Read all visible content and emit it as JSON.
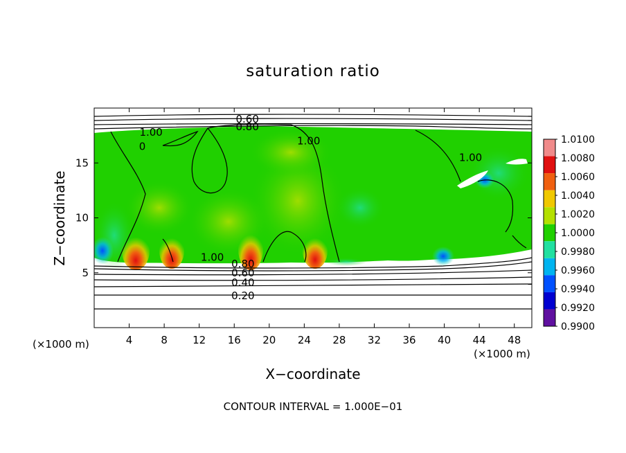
{
  "chart_data": {
    "type": "heatmap",
    "title": "saturation ratio",
    "xlabel": "X−coordinate",
    "ylabel": "Z−coordinate",
    "x_unit_label_left": "(×1000 m)",
    "x_unit_label_right": "(×1000 m)",
    "xlim": [
      0,
      50
    ],
    "ylim": [
      0,
      20
    ],
    "x_ticks": [
      4,
      8,
      12,
      16,
      20,
      24,
      28,
      32,
      36,
      40,
      44,
      48
    ],
    "y_ticks": [
      5,
      10,
      15
    ],
    "colorbar": {
      "levels": [
        1.01,
        1.008,
        1.006,
        1.004,
        1.002,
        1.0,
        0.998,
        0.996,
        0.994,
        0.992,
        0.99
      ],
      "labels": [
        "1.0100",
        "1.0080",
        "1.0060",
        "1.0040",
        "1.0020",
        "1.0000",
        "0.9980",
        "0.9960",
        "0.9940",
        "0.9920",
        "0.9900"
      ],
      "colors": [
        "#f08a8a",
        "#e01010",
        "#f06010",
        "#f0c800",
        "#b4e000",
        "#20d000",
        "#20e0a0",
        "#00b4f0",
        "#0050ff",
        "#0000d0",
        "#6010a0"
      ]
    },
    "contour_labels": [
      {
        "text": "0.60",
        "x": 17.5,
        "z": 19.0
      },
      {
        "text": "0.80",
        "x": 17.5,
        "z": 18.3
      },
      {
        "text": "1.00",
        "x": 6.5,
        "z": 17.8
      },
      {
        "text": "0",
        "x": 5.5,
        "z": 16.5
      },
      {
        "text": "1.00",
        "x": 24.5,
        "z": 17.0
      },
      {
        "text": "1.00",
        "x": 43.0,
        "z": 15.5
      },
      {
        "text": "1.00",
        "x": 13.5,
        "z": 6.4
      },
      {
        "text": "0.80",
        "x": 17.0,
        "z": 5.8
      },
      {
        "text": "0.60",
        "x": 17.0,
        "z": 5.0
      },
      {
        "text": "0.40",
        "x": 17.0,
        "z": 4.1
      },
      {
        "text": "0.20",
        "x": 17.0,
        "z": 2.9
      }
    ],
    "contour_interval_note": "CONTOUR INTERVAL = 1.000E−01"
  }
}
